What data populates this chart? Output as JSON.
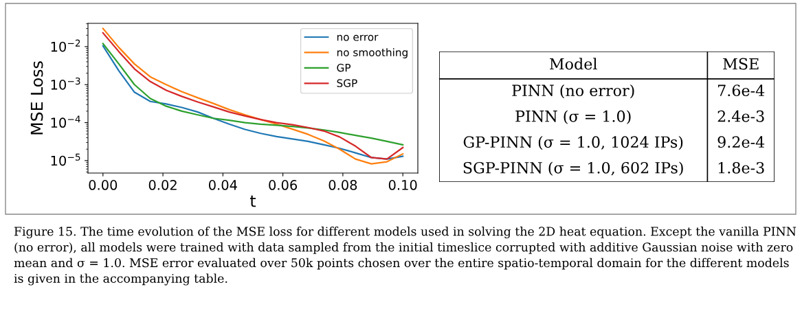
{
  "chart_data": [
    {
      "type": "line",
      "xlabel": "t",
      "ylabel": "MSE Loss",
      "log": "y",
      "legend": "top right",
      "grid": false,
      "x": [
        0,
        0.0053,
        0.0105,
        0.0158,
        0.0211,
        0.0263,
        0.0316,
        0.0368,
        0.0421,
        0.0474,
        0.0526,
        0.0579,
        0.0632,
        0.0684,
        0.0737,
        0.0789,
        0.0842,
        0.0895,
        0.0947,
        0.1
      ],
      "xlim": [
        -0.005,
        0.105
      ],
      "xticks": [
        {
          "value": 0,
          "label": "0.00"
        },
        {
          "value": 0.02,
          "label": "0.02"
        },
        {
          "value": 0.04,
          "label": "0.04"
        },
        {
          "value": 0.06,
          "label": "0.06"
        },
        {
          "value": 0.08,
          "label": "0.08"
        },
        {
          "value": 0.1,
          "label": "0.10"
        }
      ],
      "ylim": [
        4.7e-06,
        0.041
      ],
      "yticks": [
        {
          "value": 1e-05,
          "label": "10$^{−5}$"
        },
        {
          "value": 0.0001,
          "label": "10$^{−4}$"
        },
        {
          "value": 0.001,
          "label": "10$^{−3}$"
        },
        {
          "value": 0.01,
          "label": "10$^{−2}$"
        }
      ],
      "series": [
        {
          "name": "no error",
          "color": "#1f77b4",
          "values": [
            0.0105,
            0.0023,
            0.00063,
            0.00036,
            0.00031,
            0.00025,
            0.00019,
            0.00013,
            9.1e-05,
            6.6e-05,
            5.2e-05,
            4.3e-05,
            3.7e-05,
            3.2e-05,
            2.6e-05,
            2.1e-05,
            1.6e-05,
            1.2e-05,
            1.1e-05,
            1.3e-05
          ]
        },
        {
          "name": "no smoothing",
          "color": "#ff7f0e",
          "values": [
            0.03,
            0.0095,
            0.0035,
            0.0016,
            0.001,
            0.00065,
            0.00045,
            0.00032,
            0.00022,
            0.00016,
            0.00012,
            9.1e-05,
            6.7e-05,
            4.9e-05,
            3.3e-05,
            2e-05,
            1.1e-05,
            8.2e-06,
            9.3e-06,
            1.5e-05
          ]
        },
        {
          "name": "GP",
          "color": "#2ca02c",
          "values": [
            0.012,
            0.0035,
            0.001,
            0.00043,
            0.00027,
            0.0002,
            0.00016,
            0.00013,
            0.000115,
            0.0001,
            9.1e-05,
            8.5e-05,
            7.9e-05,
            7.2e-05,
            6.4e-05,
            5.5e-05,
            4.6e-05,
            3.9e-05,
            3.2e-05,
            2.6e-05
          ]
        },
        {
          "name": "SGP",
          "color": "#d62728",
          "values": [
            0.023,
            0.0074,
            0.0026,
            0.0012,
            0.00071,
            0.00049,
            0.00035,
            0.00026,
            0.00019,
            0.00015,
            0.00012,
            0.0001,
            8.8e-05,
            7.4e-05,
            6e-05,
            4.2e-05,
            2.4e-05,
            1.2e-05,
            1.1e-05,
            2.2e-05
          ]
        }
      ],
      "annotations": [
        "Figure 15. The time evolution of the MSE loss for different models used in solving the 2D heat equation. Except the vanilla PINN (no error), all models were trained with data sampled from the initial timeslice corrupted with additive Gaussian noise with zero mean and σ = 1.0. MSE error evaluated over 50k points chosen over the entire spatio-temporal domain for the different models is given in the accompanying table."
      ]
    },
    {
      "type": "other",
      "annotations": [
        "Model",
        "MSE"
      ],
      "categories": [
        "PINN (no error)",
        "PINN (σ = 1.0)",
        "GP-PINN (σ = 1.0, 1024 IPs)",
        "SGP-PINN (σ = 1.0, 602 IPs)"
      ],
      "value_labels": [
        "7.6e-4",
        "2.4e-3",
        "9.2e-4",
        "1.8e-3"
      ]
    }
  ]
}
